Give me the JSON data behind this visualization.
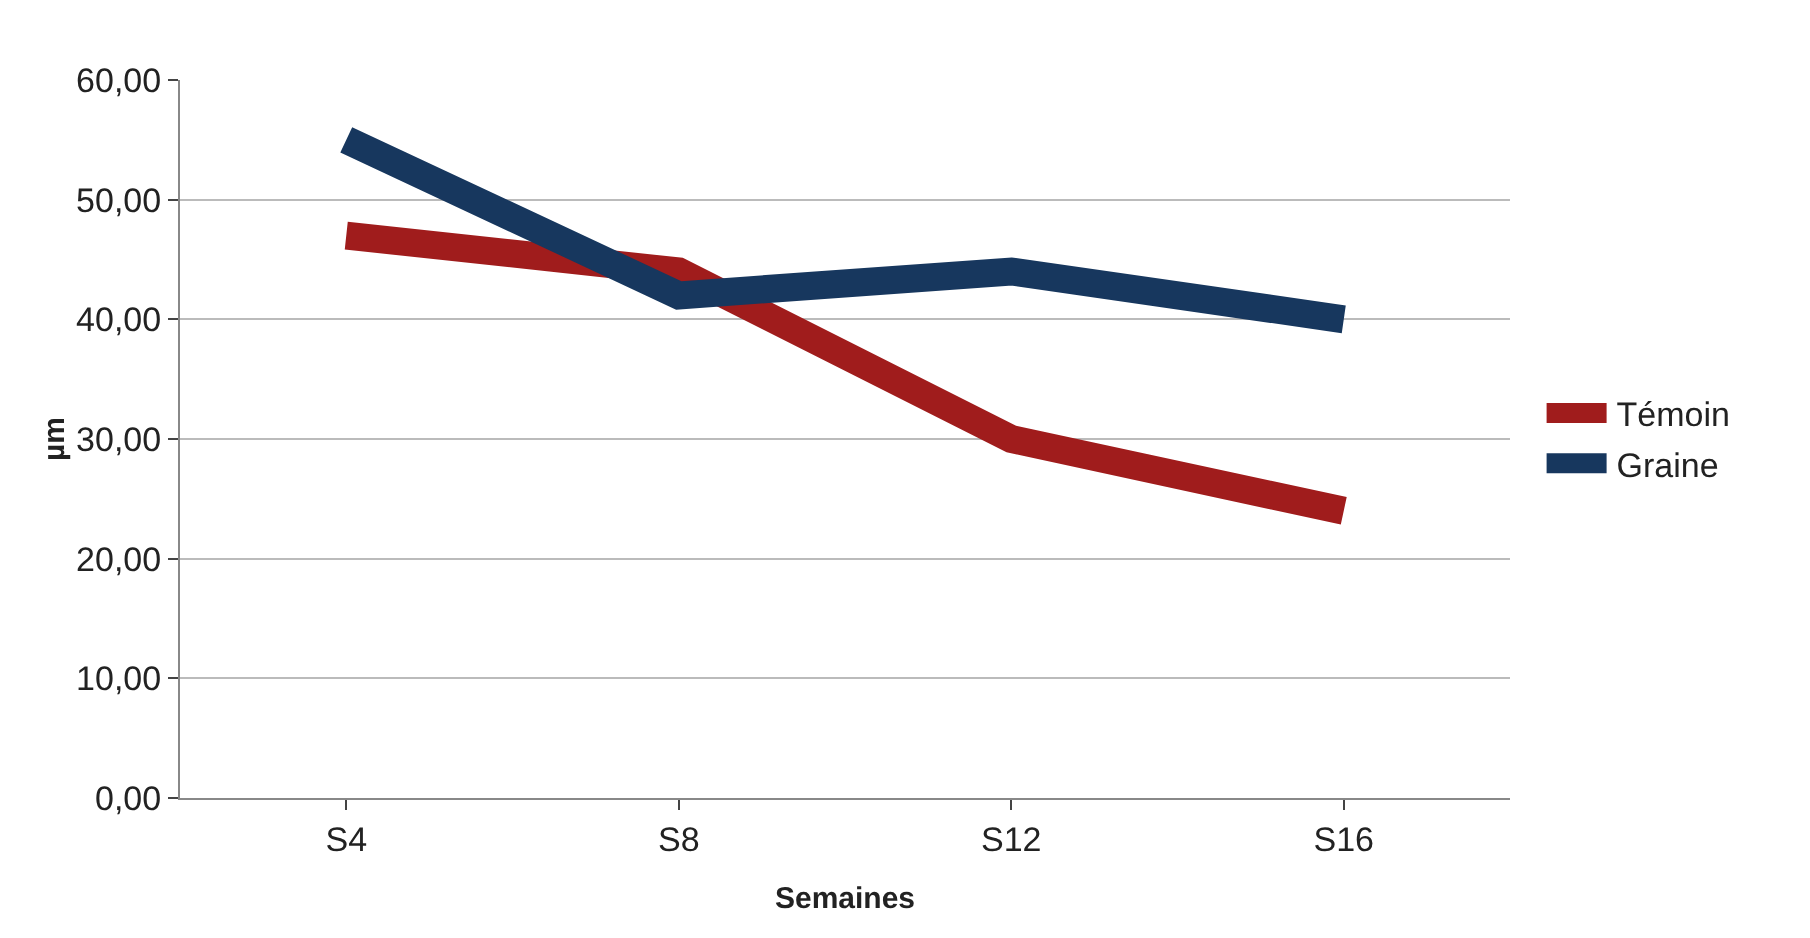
{
  "chart_data": {
    "type": "line",
    "xlabel": "Semaines",
    "ylabel": "µm",
    "categories": [
      "S4",
      "S8",
      "S12",
      "S16"
    ],
    "series": [
      {
        "name": "Témoin",
        "color": "#a01c1c",
        "values": [
          47,
          44,
          30,
          24
        ]
      },
      {
        "name": "Graine",
        "color": "#17375e",
        "values": [
          55,
          42,
          44,
          40
        ]
      }
    ],
    "ylim": [
      0,
      60
    ],
    "yticks": [
      {
        "value": 0,
        "label": "0,00"
      },
      {
        "value": 10,
        "label": "10,00"
      },
      {
        "value": 20,
        "label": "20,00"
      },
      {
        "value": 30,
        "label": "30,00"
      },
      {
        "value": 40,
        "label": "40,00"
      },
      {
        "value": 50,
        "label": "50,00"
      },
      {
        "value": 60,
        "label": "60,00"
      }
    ],
    "grid": "y",
    "legend": "right",
    "marker": "none",
    "line_style": "solid"
  }
}
